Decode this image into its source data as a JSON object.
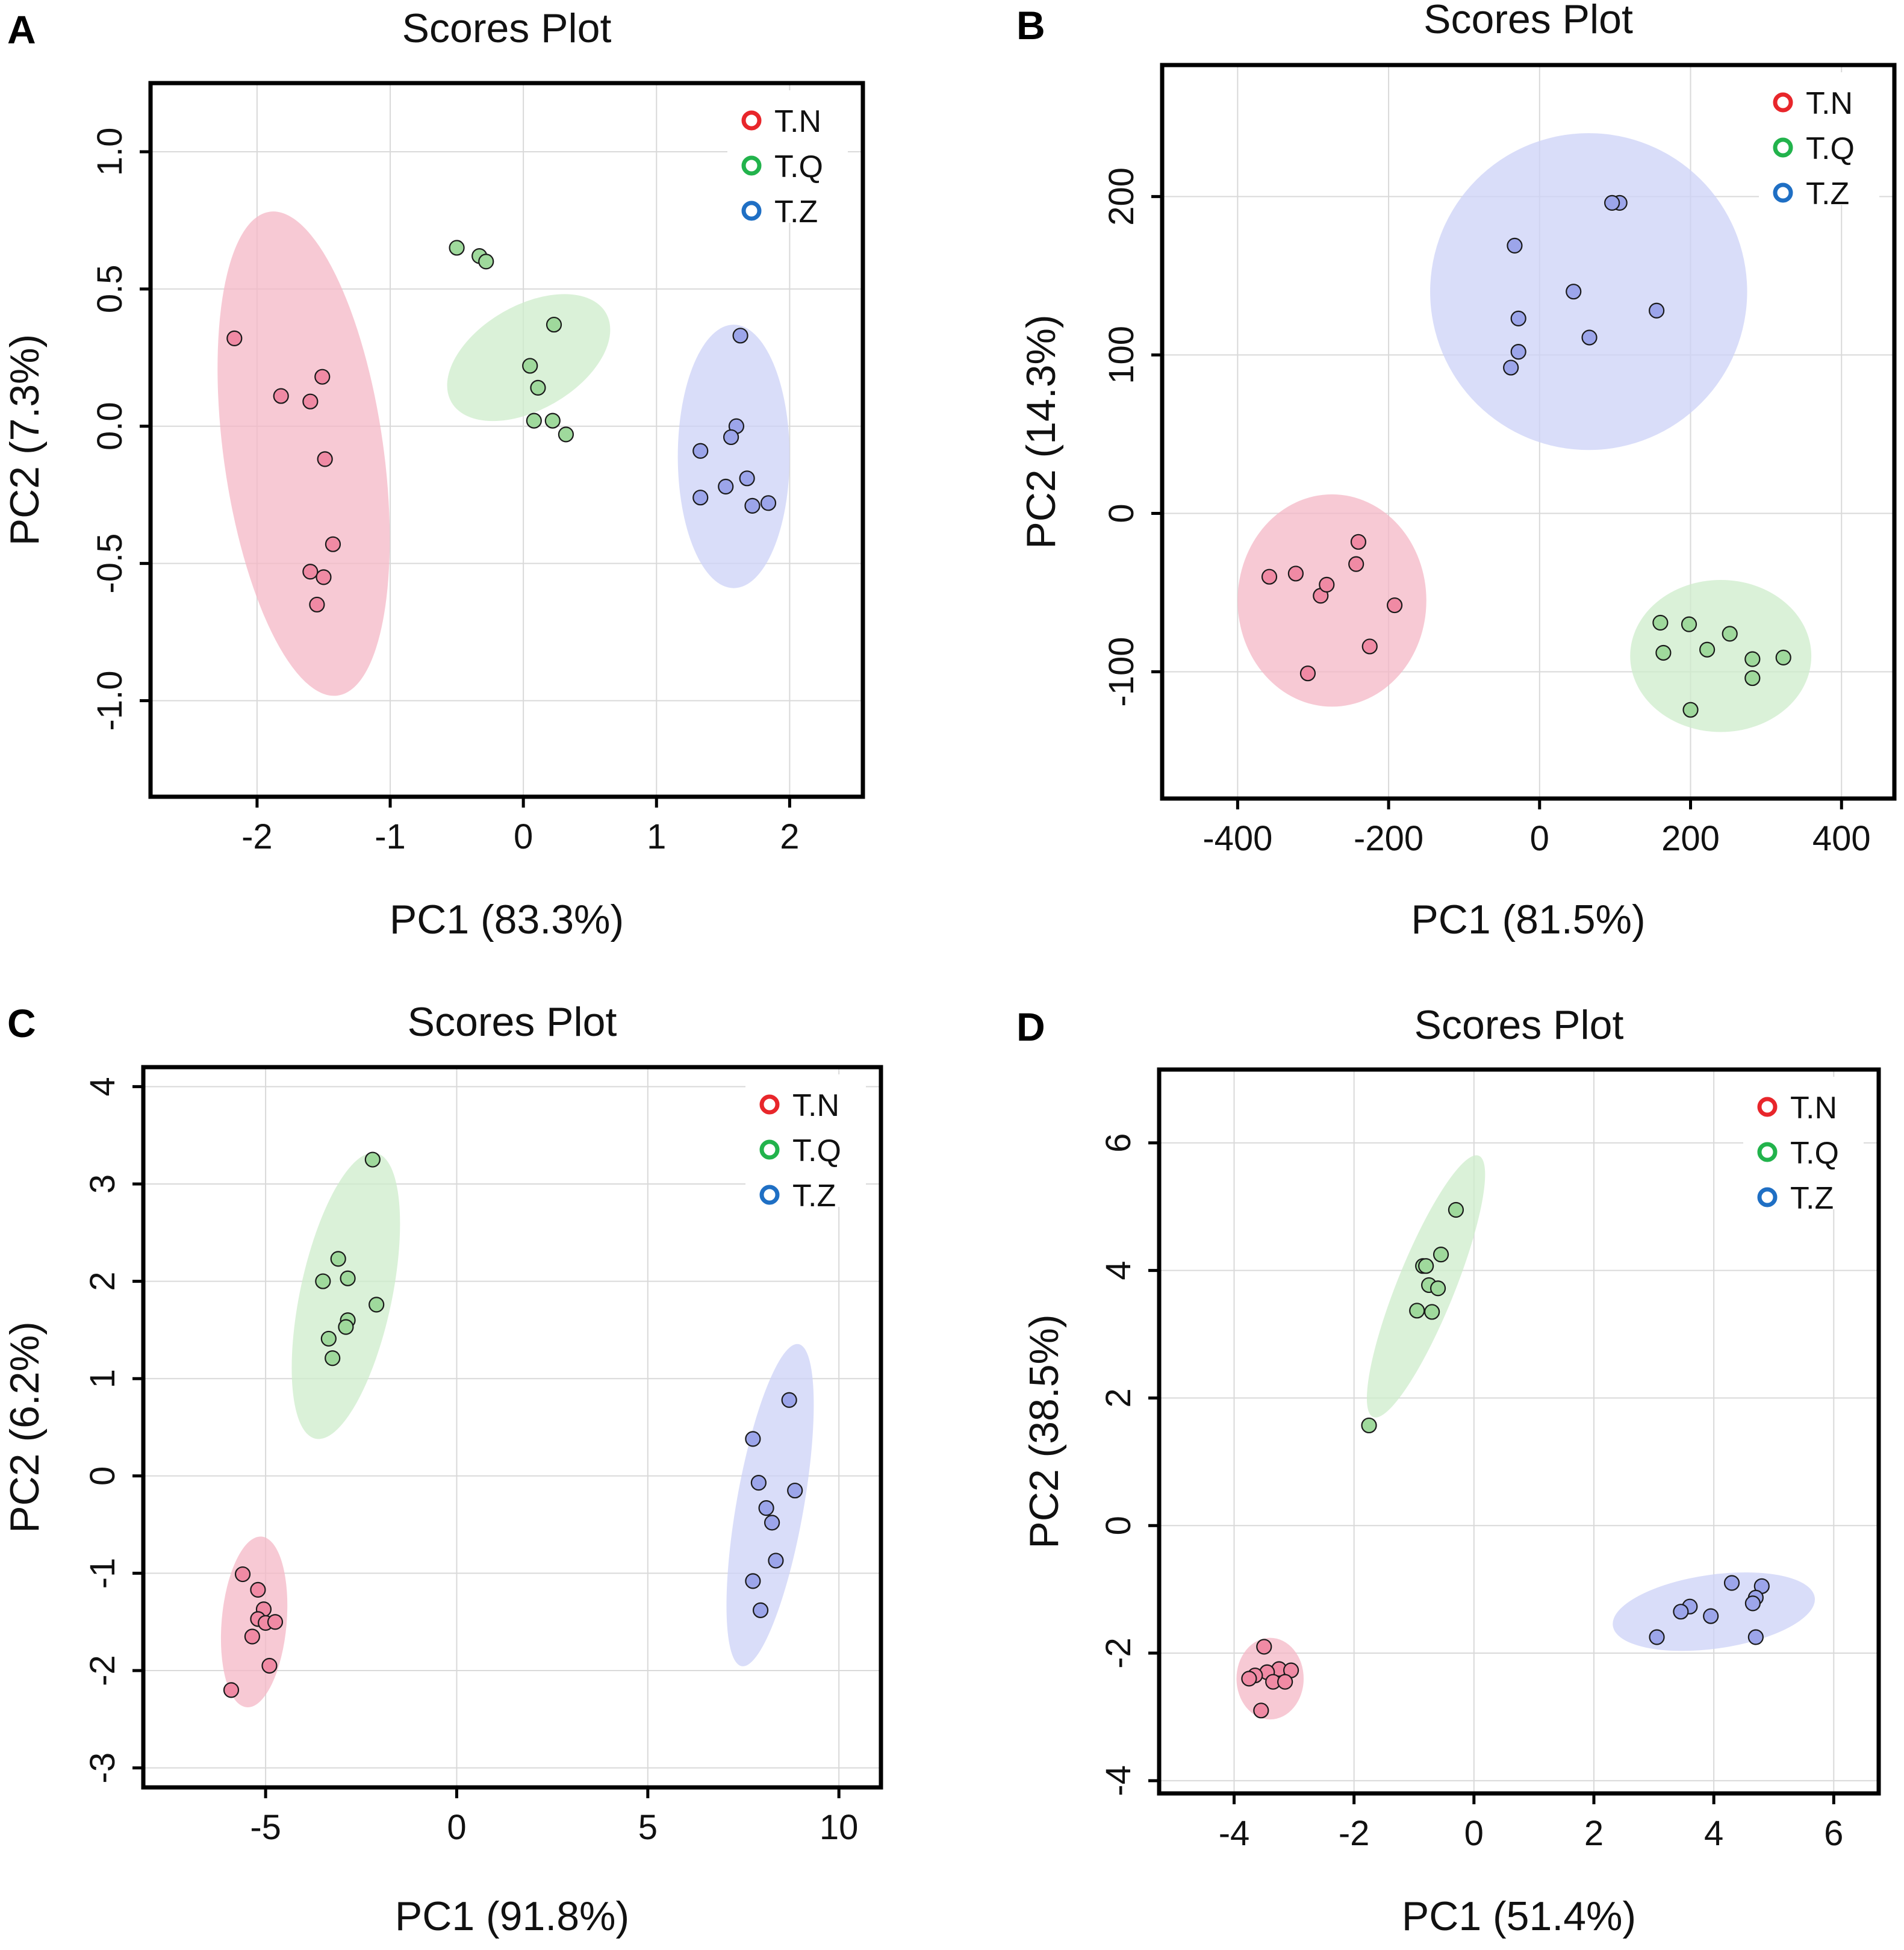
{
  "legend_items": [
    "T.N",
    "T.Q",
    "T.Z"
  ],
  "colors": {
    "T.N": {
      "fill": "#f08aa4",
      "ellipse": "#f4b7c6",
      "marker": "#e8262b"
    },
    "T.Q": {
      "fill": "#9fd99c",
      "ellipse": "#cdeccb",
      "marker": "#22b34c"
    },
    "T.Z": {
      "fill": "#9ca5ea",
      "ellipse": "#ccd1f7",
      "marker": "#1f6fc4"
    }
  },
  "chart_data": [
    {
      "panel": "A",
      "type": "scatter",
      "title": "Scores Plot",
      "xlabel": "PC1 (83.3%)",
      "ylabel": "PC2 (7.3%)",
      "xlim": [
        -2.8,
        2.55
      ],
      "ylim": [
        -1.35,
        1.25
      ],
      "xticks": [
        -2,
        -1,
        0,
        1,
        2
      ],
      "xticklabels": [
        "-2",
        "-1",
        "0",
        "1",
        "2"
      ],
      "yticks": [
        1.0,
        0.5,
        0.0,
        -0.5,
        -1.0
      ],
      "yticklabels": [
        "1.0",
        "0.5",
        "0.0",
        "-0.5",
        "-1.0"
      ],
      "series": [
        {
          "name": "T.N",
          "points": [
            [
              -2.17,
              0.32
            ],
            [
              -1.82,
              0.11
            ],
            [
              -1.6,
              0.09
            ],
            [
              -1.51,
              0.18
            ],
            [
              -1.49,
              -0.12
            ],
            [
              -1.43,
              -0.43
            ],
            [
              -1.6,
              -0.53
            ],
            [
              -1.5,
              -0.55
            ],
            [
              -1.55,
              -0.65
            ]
          ],
          "ellipse": {
            "cx": -1.65,
            "cy": -0.1,
            "rx": 0.6,
            "ry": 0.89,
            "angle": -8
          }
        },
        {
          "name": "T.Q",
          "points": [
            [
              -0.5,
              0.65
            ],
            [
              -0.33,
              0.62
            ],
            [
              -0.28,
              0.6
            ],
            [
              0.23,
              0.37
            ],
            [
              0.05,
              0.22
            ],
            [
              0.11,
              0.14
            ],
            [
              0.08,
              0.02
            ],
            [
              0.22,
              0.02
            ],
            [
              0.32,
              -0.03
            ]
          ],
          "ellipse": {
            "cx": 0.04,
            "cy": 0.25,
            "rx": 0.67,
            "ry": 0.19,
            "angle": -30
          }
        },
        {
          "name": "T.Z",
          "points": [
            [
              1.63,
              0.33
            ],
            [
              1.6,
              0.0
            ],
            [
              1.56,
              -0.04
            ],
            [
              1.33,
              -0.09
            ],
            [
              1.68,
              -0.19
            ],
            [
              1.52,
              -0.22
            ],
            [
              1.33,
              -0.26
            ],
            [
              1.72,
              -0.29
            ],
            [
              1.84,
              -0.28
            ]
          ],
          "ellipse": {
            "cx": 1.58,
            "cy": -0.11,
            "rx": 0.42,
            "ry": 0.48,
            "angle": 0
          }
        }
      ]
    },
    {
      "panel": "B",
      "type": "scatter",
      "title": "Scores Plot",
      "xlabel": "PC1 (81.5%)",
      "ylabel": "PC2 (14.3%)",
      "xlim": [
        -500,
        470
      ],
      "ylim": [
        -180,
        283
      ],
      "xticks": [
        -400,
        -200,
        0,
        200,
        400
      ],
      "xticklabels": [
        "-400",
        "-200",
        "0",
        "200",
        "400"
      ],
      "yticks": [
        200,
        100,
        0,
        -100
      ],
      "yticklabels": [
        "200",
        "100",
        "0",
        "-100"
      ],
      "series": [
        {
          "name": "T.N",
          "points": [
            [
              -240,
              -18
            ],
            [
              -243,
              -32
            ],
            [
              -358,
              -40
            ],
            [
              -323,
              -38
            ],
            [
              -290,
              -52
            ],
            [
              -282,
              -45
            ],
            [
              -192,
              -58
            ],
            [
              -225,
              -84
            ],
            [
              -307,
              -101
            ]
          ],
          "ellipse": {
            "cx": -275,
            "cy": -55,
            "rx": 125,
            "ry": 67,
            "angle": 0
          }
        },
        {
          "name": "T.Q",
          "points": [
            [
              160,
              -69
            ],
            [
              198,
              -70
            ],
            [
              252,
              -76
            ],
            [
              222,
              -86
            ],
            [
              164,
              -88
            ],
            [
              282,
              -92
            ],
            [
              323,
              -91
            ],
            [
              282,
              -104
            ],
            [
              200,
              -124
            ]
          ],
          "ellipse": {
            "cx": 240,
            "cy": -90,
            "rx": 120,
            "ry": 48,
            "angle": 0
          }
        },
        {
          "name": "T.Z",
          "points": [
            [
              -33,
              169
            ],
            [
              106,
              196
            ],
            [
              96,
              196
            ],
            [
              45,
              140
            ],
            [
              155,
              128
            ],
            [
              -28,
              123
            ],
            [
              66,
              111
            ],
            [
              -28,
              102
            ],
            [
              -38,
              92
            ]
          ],
          "ellipse": {
            "cx": 65,
            "cy": 140,
            "rx": 210,
            "ry": 100,
            "angle": -20
          }
        }
      ]
    },
    {
      "panel": "C",
      "type": "scatter",
      "title": "Scores Plot",
      "xlabel": "PC1 (91.8%)",
      "ylabel": "PC2 (6.2%)",
      "xlim": [
        -8.2,
        11.1
      ],
      "ylim": [
        -3.2,
        4.2
      ],
      "xticks": [
        -5,
        0,
        5,
        10
      ],
      "xticklabels": [
        "-5",
        "0",
        "5",
        "10"
      ],
      "yticks": [
        4,
        3,
        2,
        1,
        0,
        -1,
        -2,
        -3
      ],
      "yticklabels": [
        "4",
        "3",
        "2",
        "1",
        "0",
        "-1",
        "-2",
        "-3"
      ],
      "series": [
        {
          "name": "T.N",
          "points": [
            [
              -5.6,
              -1.01
            ],
            [
              -5.2,
              -1.17
            ],
            [
              -5.05,
              -1.37
            ],
            [
              -5.2,
              -1.47
            ],
            [
              -5.0,
              -1.51
            ],
            [
              -4.75,
              -1.5
            ],
            [
              -5.35,
              -1.65
            ],
            [
              -4.9,
              -1.95
            ],
            [
              -5.9,
              -2.2
            ]
          ],
          "ellipse": {
            "cx": -5.3,
            "cy": -1.5,
            "rx": 0.85,
            "ry": 0.88,
            "angle": 5
          }
        },
        {
          "name": "T.Q",
          "points": [
            [
              -2.2,
              3.25
            ],
            [
              -3.1,
              2.23
            ],
            [
              -3.5,
              2.0
            ],
            [
              -2.85,
              2.03
            ],
            [
              -2.1,
              1.76
            ],
            [
              -2.85,
              1.6
            ],
            [
              -2.9,
              1.53
            ],
            [
              -3.35,
              1.41
            ],
            [
              -3.25,
              1.21
            ]
          ],
          "ellipse": {
            "cx": -2.9,
            "cy": 1.85,
            "rx": 1.2,
            "ry": 1.5,
            "angle": 12
          }
        },
        {
          "name": "T.Z",
          "points": [
            [
              8.7,
              0.78
            ],
            [
              7.75,
              0.38
            ],
            [
              7.9,
              -0.07
            ],
            [
              8.85,
              -0.15
            ],
            [
              8.1,
              -0.33
            ],
            [
              8.25,
              -0.48
            ],
            [
              8.35,
              -0.87
            ],
            [
              7.75,
              -1.08
            ],
            [
              7.95,
              -1.38
            ]
          ],
          "ellipse": {
            "cx": 8.2,
            "cy": -0.3,
            "rx": 0.88,
            "ry": 1.68,
            "angle": 10
          }
        }
      ]
    },
    {
      "panel": "D",
      "type": "scatter",
      "title": "Scores Plot",
      "xlabel": "PC1 (51.4%)",
      "ylabel": "PC2 (38.5%)",
      "xlim": [
        -5.25,
        6.75
      ],
      "ylim": [
        -4.2,
        7.15
      ],
      "xticks": [
        -4,
        -2,
        0,
        2,
        4,
        6
      ],
      "xticklabels": [
        "-4",
        "-2",
        "0",
        "2",
        "4",
        "6"
      ],
      "yticks": [
        6,
        4,
        2,
        0,
        -2,
        -4
      ],
      "yticklabels": [
        "6",
        "4",
        "2",
        "0",
        "-2",
        "-4"
      ],
      "series": [
        {
          "name": "T.N",
          "points": [
            [
              -3.5,
              -1.9
            ],
            [
              -3.25,
              -2.25
            ],
            [
              -3.05,
              -2.27
            ],
            [
              -3.45,
              -2.3
            ],
            [
              -3.65,
              -2.35
            ],
            [
              -3.75,
              -2.4
            ],
            [
              -3.35,
              -2.45
            ],
            [
              -3.15,
              -2.45
            ],
            [
              -3.55,
              -2.9
            ]
          ],
          "ellipse": {
            "cx": -3.4,
            "cy": -2.4,
            "rx": 0.56,
            "ry": 0.64,
            "angle": 0
          }
        },
        {
          "name": "T.Q",
          "points": [
            [
              -0.3,
              4.95
            ],
            [
              -0.55,
              4.25
            ],
            [
              -0.85,
              4.07
            ],
            [
              -0.8,
              4.07
            ],
            [
              -0.75,
              3.77
            ],
            [
              -0.6,
              3.72
            ],
            [
              -0.95,
              3.37
            ],
            [
              -0.7,
              3.35
            ],
            [
              -1.75,
              1.57
            ]
          ],
          "ellipse": {
            "cx": -0.8,
            "cy": 3.75,
            "rx": 2.35,
            "ry": 0.45,
            "angle": -68
          }
        },
        {
          "name": "T.Z",
          "points": [
            [
              4.3,
              -0.9
            ],
            [
              4.8,
              -0.95
            ],
            [
              4.7,
              -1.13
            ],
            [
              4.65,
              -1.22
            ],
            [
              3.6,
              -1.27
            ],
            [
              3.45,
              -1.35
            ],
            [
              3.95,
              -1.42
            ],
            [
              4.7,
              -1.75
            ],
            [
              3.05,
              -1.75
            ]
          ],
          "ellipse": {
            "cx": 4.0,
            "cy": -1.35,
            "rx": 1.7,
            "ry": 0.58,
            "angle": -8
          }
        }
      ]
    }
  ]
}
